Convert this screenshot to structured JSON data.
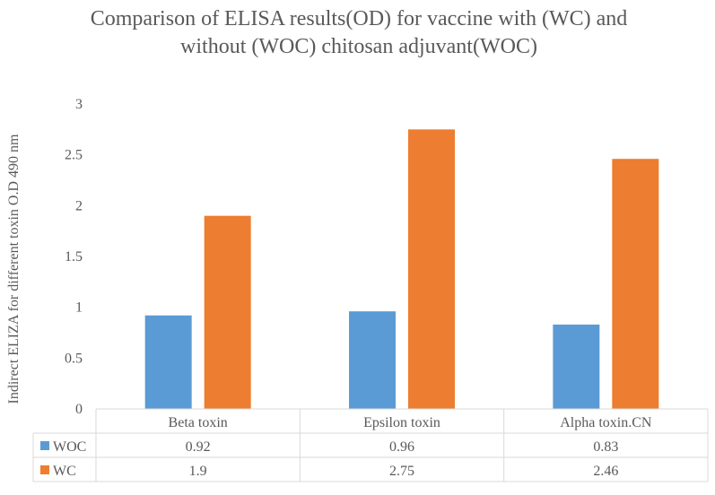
{
  "chart_data": {
    "type": "bar",
    "title_lines": [
      "Comparison of ELISA results(OD)  for vaccine with (WC) and",
      "without (WOC) chitosan adjuvant(WOC)"
    ],
    "xlabel": "",
    "ylabel": "Indirect ELIZA  for  different  toxin O.D 490 nm",
    "ylim": [
      0,
      3
    ],
    "yticks": [
      "0",
      "0.5",
      "1",
      "1.5",
      "2",
      "2.5",
      "3"
    ],
    "categories": [
      "Beta toxin",
      "Epsilon toxin",
      "Alpha toxin.CN"
    ],
    "series": [
      {
        "name": "WOC",
        "color": "#5b9bd5",
        "values": [
          0.92,
          0.96,
          0.83
        ],
        "labels": [
          "0.92",
          "0.96",
          "0.83"
        ]
      },
      {
        "name": "WC",
        "color": "#ed7d31",
        "values": [
          1.9,
          2.75,
          2.46
        ],
        "labels": [
          "1.9",
          "2.75",
          "2.46"
        ]
      }
    ],
    "legend": "data-table",
    "grid": false
  }
}
